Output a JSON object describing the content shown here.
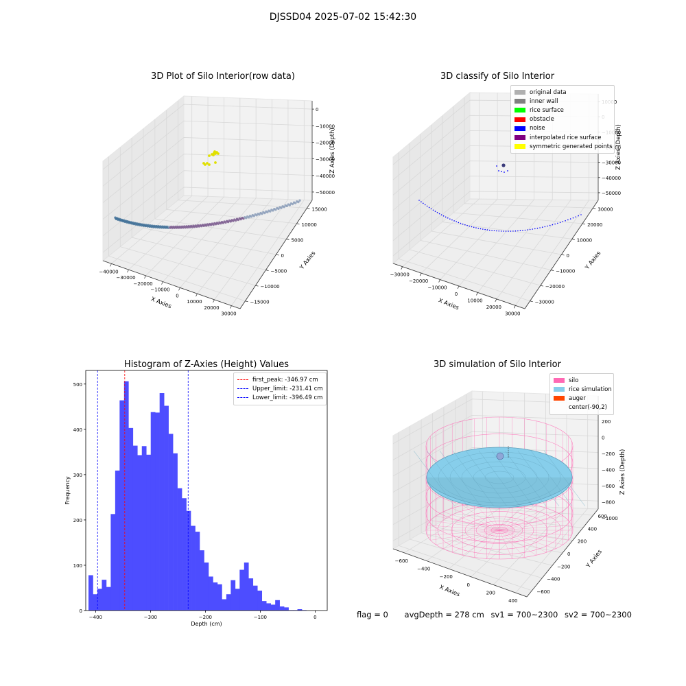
{
  "figure_title": "DJSSD04 2025-07-02 15:42:30",
  "status": {
    "flag": "flag = 0",
    "avg_depth": "avgDepth = 278 cm",
    "sv1": "sv1 = 700~2300",
    "sv2": "sv2 = 700~2300"
  },
  "chart_data": [
    {
      "id": "raw",
      "type": "scatter",
      "title": "3D Plot of Silo Interior(row data)",
      "xlabel": "X Axies",
      "ylabel": "Y Axies",
      "zlabel": "Z Axies (Depth)",
      "x_ticks": [
        "−40000",
        "−30000",
        "−20000",
        "−10000",
        "0",
        "10000",
        "20000",
        "30000"
      ],
      "y_ticks": [
        "15000",
        "10000",
        "5000",
        "0",
        "−5000",
        "−10000",
        "−15000"
      ],
      "z_ticks": [
        "0",
        "−10000",
        "−20000",
        "−30000",
        "−40000",
        "−50000"
      ],
      "series": [
        {
          "color": "#3a7fa8",
          "kind": "arc",
          "x": [
            -36000,
            31000
          ],
          "z": [
            -45000,
            -33000
          ]
        },
        {
          "color": "#e0e000",
          "kind": "cluster",
          "x": [
            0,
            5000
          ],
          "z": [
            -10000,
            -3000
          ]
        }
      ]
    },
    {
      "id": "classify",
      "type": "scatter",
      "title": "3D classify of Silo Interior",
      "xlabel": "X Axies",
      "ylabel": "Y Axies",
      "zlabel": "Z Axies (Depth)",
      "x_ticks": [
        "−30000",
        "−20000",
        "−10000",
        "0",
        "10000",
        "20000",
        "30000"
      ],
      "y_ticks": [
        "30000",
        "20000",
        "10000",
        "0",
        "−10000",
        "−20000",
        "−30000"
      ],
      "z_ticks": [
        "10000",
        "0",
        "−10000",
        "−20000",
        "−30000",
        "−40000",
        "−50000"
      ],
      "legend": [
        {
          "label": "original data",
          "color": "#b0b0b0"
        },
        {
          "label": "inner wall",
          "color": "#808080"
        },
        {
          "label": "rice surface",
          "color": "#00ff00"
        },
        {
          "label": "obstacle",
          "color": "#ff0000"
        },
        {
          "label": "noise",
          "color": "#0000ff"
        },
        {
          "label": "interpolated rice surface",
          "color": "#800080"
        },
        {
          "label": "symmetric generated points",
          "color": "#ffff00"
        }
      ]
    },
    {
      "id": "hist",
      "type": "bar",
      "title": "Histogram of Z-Axies (Height) Values",
      "xlabel": "Depth (cm)",
      "ylabel": "Frequency",
      "xlim": [
        -418,
        22
      ],
      "ylim": [
        0,
        530
      ],
      "x_ticks": [
        -400,
        -300,
        -200,
        -100,
        0
      ],
      "y_ticks": [
        0,
        100,
        200,
        300,
        400,
        500
      ],
      "bin_start": -413,
      "bin_width": 8.1,
      "values": [
        78,
        36,
        48,
        68,
        52,
        213,
        309,
        464,
        506,
        403,
        364,
        343,
        363,
        344,
        438,
        437,
        480,
        452,
        390,
        347,
        270,
        248,
        220,
        187,
        174,
        133,
        106,
        75,
        62,
        58,
        25,
        36,
        67,
        48,
        90,
        106,
        71,
        55,
        44,
        21,
        16,
        13,
        23,
        9,
        7,
        1,
        1,
        3,
        1
      ],
      "bar_color": "#4d4dff",
      "lines": [
        {
          "label": "first_peak: -346.97 cm",
          "value": -346.97,
          "color": "#ff0000"
        },
        {
          "label": "Upper_limit: -231.41 cm",
          "value": -231.41,
          "color": "#0000ff"
        },
        {
          "label": "Lower_limit: -396.49 cm",
          "value": -396.49,
          "color": "#0000ff"
        }
      ]
    },
    {
      "id": "sim",
      "type": "surface",
      "title": "3D simulation of Silo Interior",
      "xlabel": "X Axies",
      "ylabel": "Y Axies",
      "zlabel": "Z Axies (Depth)",
      "x_ticks": [
        "−600",
        "−400",
        "−200",
        "0",
        "200",
        "400"
      ],
      "y_ticks": [
        "600",
        "400",
        "200",
        "0",
        "−200",
        "−400",
        "−600"
      ],
      "z_ticks": [
        "200",
        "0",
        "−200",
        "−400",
        "−600",
        "−800",
        "−1000"
      ],
      "legend": [
        {
          "label": "silo",
          "color": "#ff69b4"
        },
        {
          "label": "rice simulation",
          "color": "#87ceeb"
        },
        {
          "label": "auger",
          "color": "#ff4500"
        },
        {
          "label": "center(-90,2)",
          "color": ""
        }
      ]
    }
  ]
}
